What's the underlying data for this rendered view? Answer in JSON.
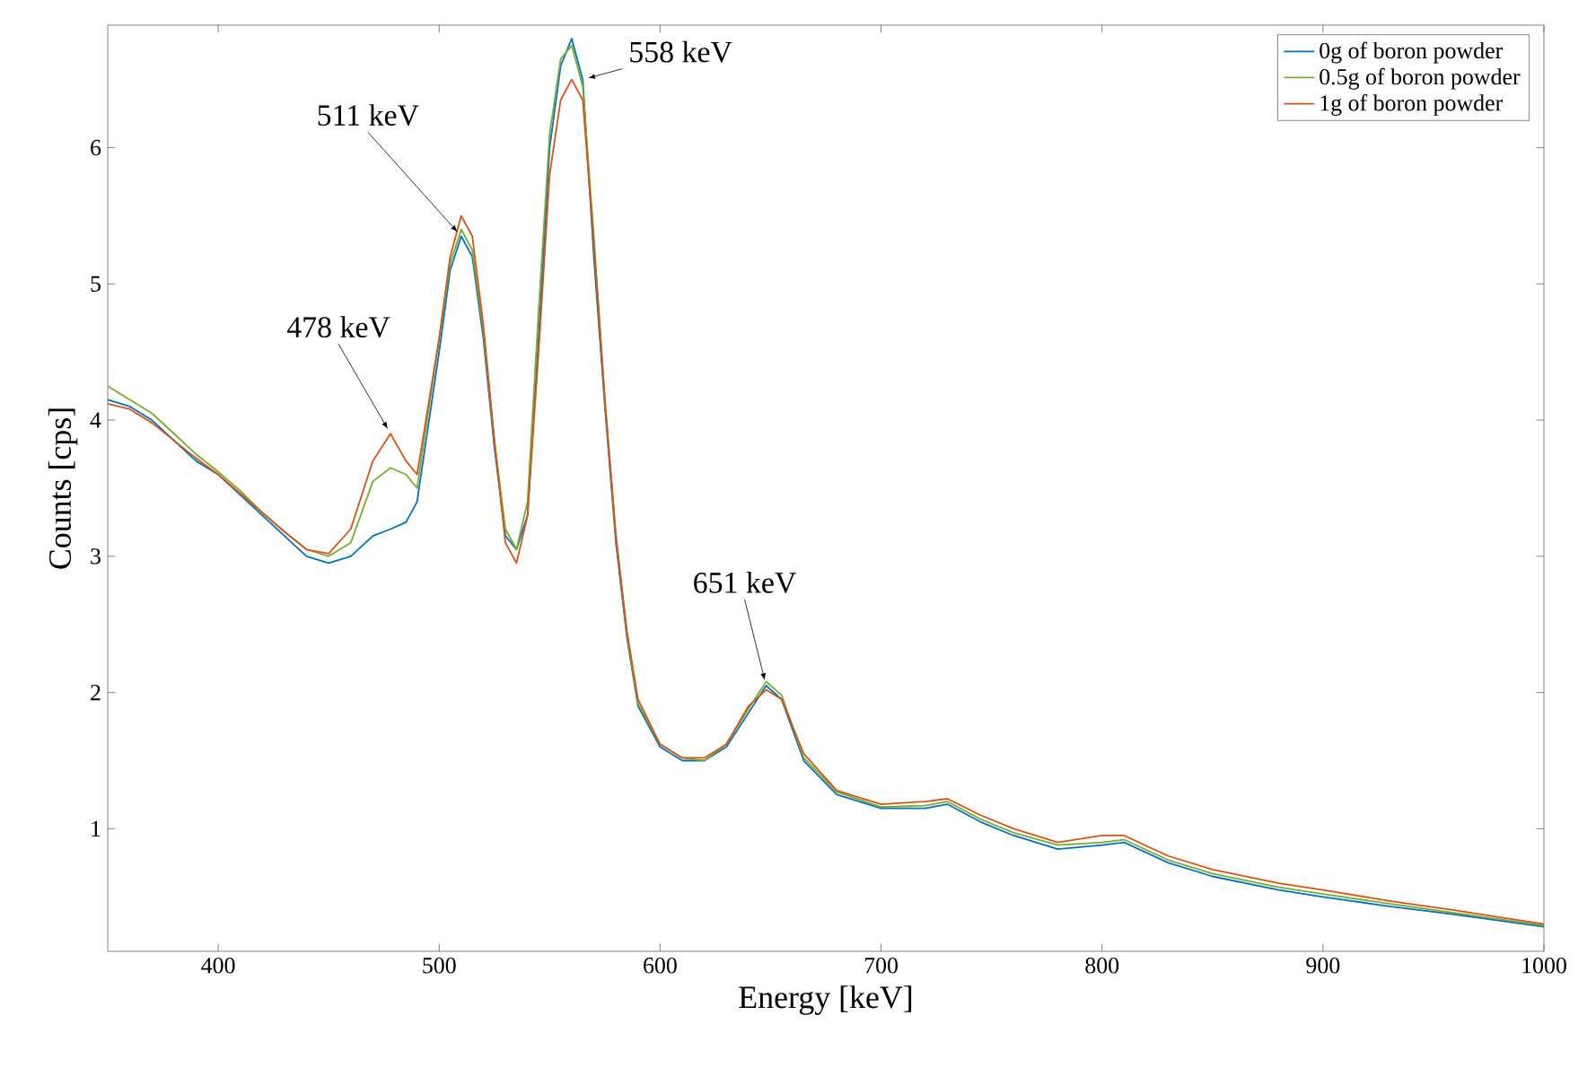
{
  "chart_data": {
    "type": "line",
    "xlabel": "Energy [keV]",
    "ylabel": "Counts [cps]",
    "xlim": [
      350,
      1000
    ],
    "ylim": [
      0.1,
      6.9
    ],
    "xticks": [
      400,
      500,
      600,
      700,
      800,
      900,
      1000
    ],
    "yticks": [
      1,
      2,
      3,
      4,
      5,
      6
    ],
    "legend": "top right",
    "grid": false,
    "marker": "none",
    "line_style": "solid",
    "x": [
      350,
      360,
      370,
      380,
      390,
      400,
      410,
      420,
      430,
      440,
      450,
      460,
      470,
      478,
      485,
      490,
      500,
      505,
      510,
      515,
      520,
      525,
      530,
      535,
      540,
      545,
      550,
      555,
      560,
      565,
      570,
      575,
      580,
      585,
      590,
      600,
      610,
      620,
      630,
      640,
      648,
      655,
      665,
      680,
      700,
      720,
      730,
      745,
      760,
      780,
      800,
      810,
      830,
      850,
      880,
      900,
      930,
      960,
      1000
    ],
    "series": [
      {
        "name": "0g of boron powder",
        "color": "#0072bd",
        "values": [
          4.15,
          4.1,
          4.0,
          3.85,
          3.7,
          3.6,
          3.45,
          3.3,
          3.15,
          3.0,
          2.95,
          3.0,
          3.15,
          3.2,
          3.25,
          3.4,
          4.5,
          5.1,
          5.35,
          5.2,
          4.6,
          3.8,
          3.15,
          3.05,
          3.3,
          4.6,
          6.0,
          6.6,
          6.8,
          6.5,
          5.2,
          4.1,
          3.1,
          2.4,
          1.9,
          1.6,
          1.5,
          1.5,
          1.6,
          1.85,
          2.05,
          1.95,
          1.5,
          1.25,
          1.15,
          1.15,
          1.18,
          1.05,
          0.95,
          0.85,
          0.88,
          0.9,
          0.75,
          0.65,
          0.55,
          0.5,
          0.43,
          0.37,
          0.28
        ]
      },
      {
        "name": "0.5g of boron powder",
        "color": "#77ac30",
        "values": [
          4.25,
          4.15,
          4.05,
          3.9,
          3.75,
          3.62,
          3.48,
          3.32,
          3.18,
          3.05,
          3.0,
          3.1,
          3.55,
          3.65,
          3.6,
          3.5,
          4.6,
          5.15,
          5.4,
          5.25,
          4.65,
          3.85,
          3.2,
          3.05,
          3.4,
          4.8,
          6.1,
          6.65,
          6.75,
          6.45,
          5.35,
          4.15,
          3.15,
          2.42,
          1.92,
          1.62,
          1.52,
          1.5,
          1.62,
          1.88,
          2.08,
          1.98,
          1.52,
          1.27,
          1.16,
          1.17,
          1.2,
          1.07,
          0.97,
          0.88,
          0.9,
          0.92,
          0.77,
          0.67,
          0.57,
          0.52,
          0.45,
          0.38,
          0.29
        ]
      },
      {
        "name": "1g of boron powder",
        "color": "#d95319",
        "values": [
          4.12,
          4.08,
          3.98,
          3.85,
          3.72,
          3.6,
          3.46,
          3.32,
          3.18,
          3.05,
          3.02,
          3.2,
          3.7,
          3.9,
          3.7,
          3.6,
          4.6,
          5.2,
          5.5,
          5.35,
          4.7,
          3.85,
          3.1,
          2.95,
          3.3,
          4.5,
          5.8,
          6.35,
          6.5,
          6.35,
          5.3,
          4.15,
          3.15,
          2.45,
          1.95,
          1.62,
          1.52,
          1.52,
          1.62,
          1.9,
          2.02,
          1.95,
          1.55,
          1.28,
          1.18,
          1.2,
          1.22,
          1.1,
          1.0,
          0.9,
          0.95,
          0.95,
          0.8,
          0.7,
          0.6,
          0.55,
          0.47,
          0.4,
          0.3
        ]
      }
    ],
    "annotations": [
      {
        "text": "511 keV",
        "x": 510,
        "y": 5.35
      },
      {
        "text": "558 keV",
        "x": 565,
        "y": 6.5
      },
      {
        "text": "478 keV",
        "x": 478,
        "y": 3.9
      },
      {
        "text": "651 keV",
        "x": 648,
        "y": 2.05
      }
    ]
  }
}
